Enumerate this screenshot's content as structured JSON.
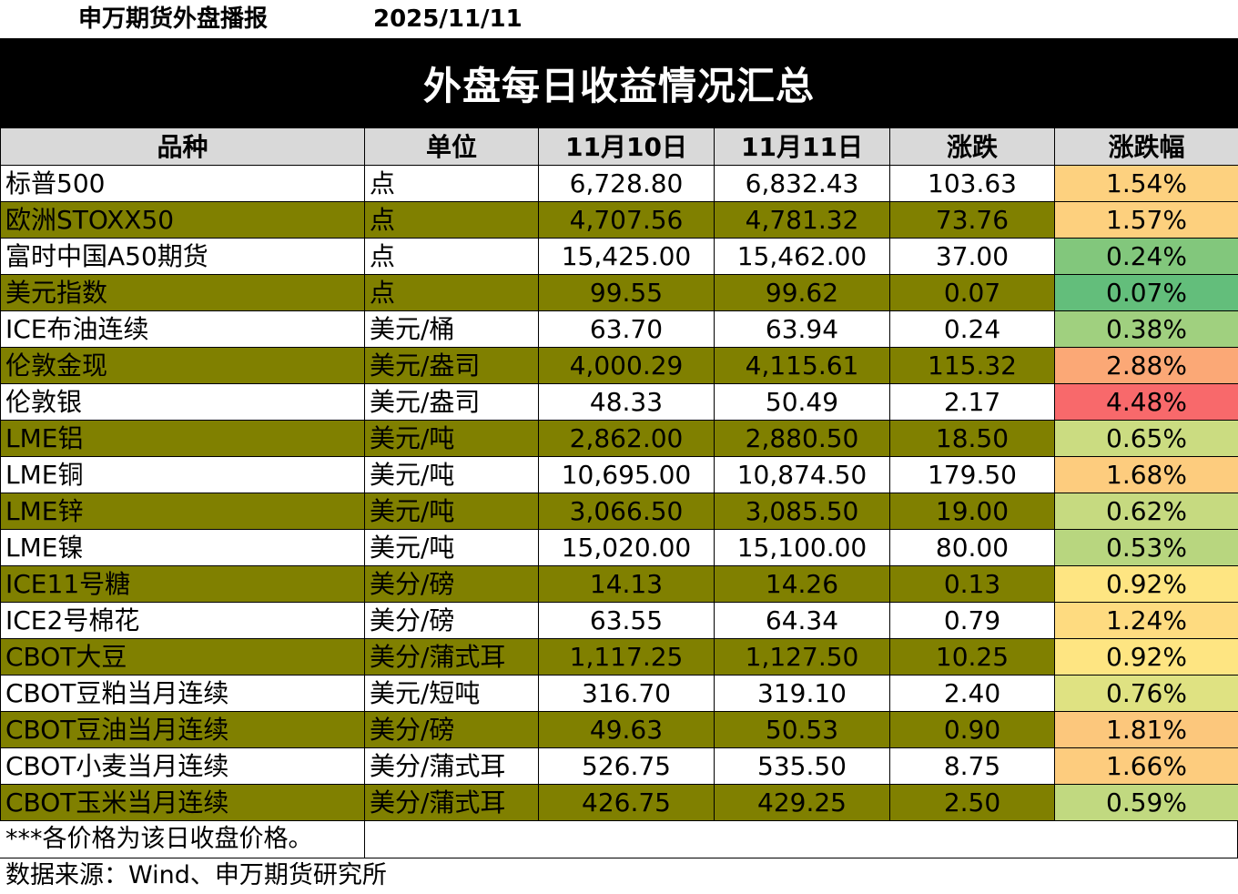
{
  "header": {
    "brand": "申万期货外盘播报",
    "date": "2025/11/11",
    "title": "外盘每日收益情况汇总"
  },
  "table": {
    "columns": [
      "品种",
      "单位",
      "11月10日",
      "11月11日",
      "涨跌",
      "涨跌幅"
    ],
    "rows": [
      {
        "name": "标普500",
        "unit": "点",
        "prev": "6,728.80",
        "curr": "6,832.43",
        "chg": "103.63",
        "pct": "1.54%",
        "pct_color": "#fdd17f",
        "shaded": false
      },
      {
        "name": "欧洲STOXX50",
        "unit": "点",
        "prev": "4,707.56",
        "curr": "4,781.32",
        "chg": "73.76",
        "pct": "1.57%",
        "pct_color": "#fdd07e",
        "shaded": true
      },
      {
        "name": "富时中国A50期货",
        "unit": "点",
        "prev": "15,425.00",
        "curr": "15,462.00",
        "chg": "37.00",
        "pct": "0.24%",
        "pct_color": "#82c77c",
        "shaded": false
      },
      {
        "name": "美元指数",
        "unit": "点",
        "prev": "99.55",
        "curr": "99.62",
        "chg": "0.07",
        "pct": "0.07%",
        "pct_color": "#63be7b",
        "shaded": true
      },
      {
        "name": "ICE布油连续",
        "unit": "美元/桶",
        "prev": "63.70",
        "curr": "63.94",
        "chg": "0.24",
        "pct": "0.38%",
        "pct_color": "#a0d07f",
        "shaded": false
      },
      {
        "name": "伦敦金现",
        "unit": "美元/盎司",
        "prev": "4,000.29",
        "curr": "4,115.61",
        "chg": "115.32",
        "pct": "2.88%",
        "pct_color": "#fba876",
        "shaded": true
      },
      {
        "name": "伦敦银",
        "unit": "美元/盎司",
        "prev": "48.33",
        "curr": "50.49",
        "chg": "2.17",
        "pct": "4.48%",
        "pct_color": "#f8696b",
        "shaded": false
      },
      {
        "name": "LME铝",
        "unit": "美元/吨",
        "prev": "2,862.00",
        "curr": "2,880.50",
        "chg": "18.50",
        "pct": "0.65%",
        "pct_color": "#cbdc81",
        "shaded": true
      },
      {
        "name": "LME铜",
        "unit": "美元/吨",
        "prev": "10,695.00",
        "curr": "10,874.50",
        "chg": "179.50",
        "pct": "1.68%",
        "pct_color": "#fdcc7e",
        "shaded": false
      },
      {
        "name": "LME锌",
        "unit": "美元/吨",
        "prev": "3,066.50",
        "curr": "3,085.50",
        "chg": "19.00",
        "pct": "0.62%",
        "pct_color": "#c6da80",
        "shaded": true
      },
      {
        "name": "LME镍",
        "unit": "美元/吨",
        "prev": "15,020.00",
        "curr": "15,100.00",
        "chg": "80.00",
        "pct": "0.53%",
        "pct_color": "#b8d67f",
        "shaded": false
      },
      {
        "name": "ICE11号糖",
        "unit": "美分/磅",
        "prev": "14.13",
        "curr": "14.26",
        "chg": "0.13",
        "pct": "0.92%",
        "pct_color": "#fee582",
        "shaded": true
      },
      {
        "name": "ICE2号棉花",
        "unit": "美分/磅",
        "prev": "63.55",
        "curr": "64.34",
        "chg": "0.79",
        "pct": "1.24%",
        "pct_color": "#fedb80",
        "shaded": false
      },
      {
        "name": "CBOT大豆",
        "unit": "美分/蒲式耳",
        "prev": "1,117.25",
        "curr": "1,127.50",
        "chg": "10.25",
        "pct": "0.92%",
        "pct_color": "#fee582",
        "shaded": true
      },
      {
        "name": "CBOT豆粕当月连续",
        "unit": "美元/短吨",
        "prev": "316.70",
        "curr": "319.10",
        "chg": "2.40",
        "pct": "0.76%",
        "pct_color": "#dfe282",
        "shaded": false
      },
      {
        "name": "CBOT豆油当月连续",
        "unit": "美分/磅",
        "prev": "49.63",
        "curr": "50.53",
        "chg": "0.90",
        "pct": "1.81%",
        "pct_color": "#fcc77c",
        "shaded": true
      },
      {
        "name": "CBOT小麦当月连续",
        "unit": "美分/蒲式耳",
        "prev": "526.75",
        "curr": "535.50",
        "chg": "8.75",
        "pct": "1.66%",
        "pct_color": "#fdcc7e",
        "shaded": false
      },
      {
        "name": "CBOT玉米当月连续",
        "unit": "美分/蒲式耳",
        "prev": "426.75",
        "curr": "429.25",
        "chg": "2.50",
        "pct": "0.59%",
        "pct_color": "#c1d980",
        "shaded": true
      }
    ]
  },
  "footer": {
    "note": "***各价格为该日收盘价格。",
    "source": "数据来源：Wind、申万期货研究所"
  }
}
